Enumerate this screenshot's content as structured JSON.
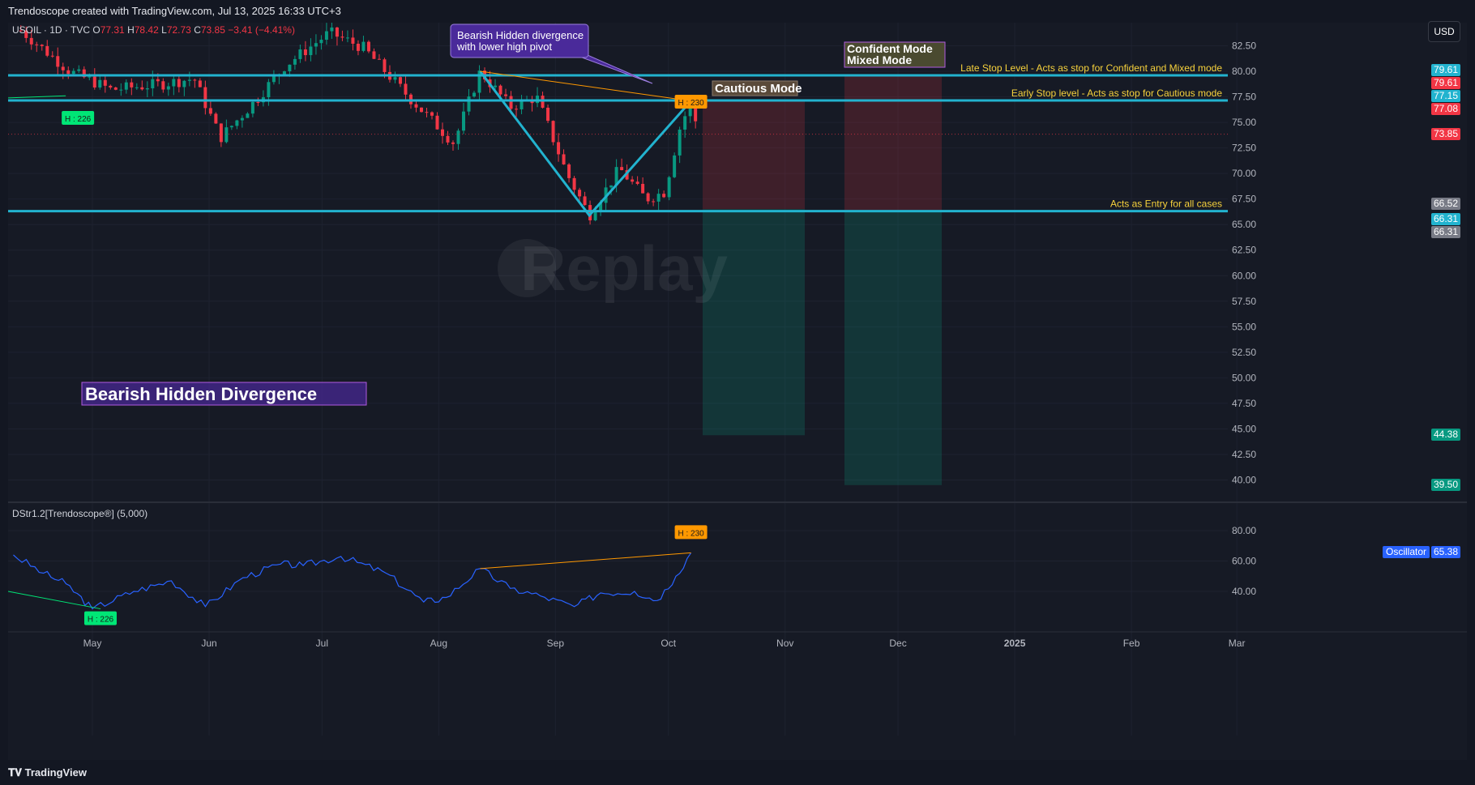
{
  "header": {
    "attribution": "Trendoscope created with TradingView.com, Jul 13, 2025 16:33 UTC+3"
  },
  "footer": {
    "brand": "TradingView"
  },
  "legend": {
    "symbol": "USOIL · 1D · TVC",
    "open_label": "O",
    "open": "77.31",
    "high_label": "H",
    "high": "78.42",
    "low_label": "L",
    "low": "72.73",
    "close_label": "C",
    "close": "73.85",
    "change": "−3.41 (−4.41%)"
  },
  "currency_button": "USD",
  "watermark": "Replay",
  "indicator": {
    "title": "DStr1.2[Trendoscope®] (5,000)",
    "badge": "Oscillator",
    "value": "65.38"
  },
  "annotations": {
    "callout": "Bearish Hidden divergence with lower high pivot",
    "title_box": "Bearish Hidden Divergence",
    "cautious": "Cautious Mode",
    "confident": "Confident Mode",
    "mixed": "Mixed Mode",
    "late_stop": "Late Stop Level - Acts as stop for Confident and Mixed mode",
    "early_stop": "Early Stop level - Acts as stop for Cautious mode",
    "entry": "Acts as Entry for all cases",
    "pivot_high_label": "H : 230",
    "pivot_low_label": "H : 226"
  },
  "price_tags": [
    {
      "value": "79.61",
      "color": "#22b3cf"
    },
    {
      "value": "79.61",
      "color": "#f23645"
    },
    {
      "value": "77.15",
      "color": "#22b3cf"
    },
    {
      "value": "77.08",
      "color": "#f23645"
    },
    {
      "value": "73.85",
      "color": "#f23645"
    },
    {
      "value": "66.52",
      "color": "#787b86"
    },
    {
      "value": "66.31",
      "color": "#22b3cf"
    },
    {
      "value": "66.31",
      "color": "#787b86"
    },
    {
      "value": "44.38",
      "color": "#089981"
    },
    {
      "value": "39.50",
      "color": "#089981"
    }
  ],
  "colors": {
    "up": "#089981",
    "down": "#f23645",
    "level": "#22b3cf",
    "osc": "#2962ff",
    "pivot": "#ff9800",
    "pivot_low": "#00e676"
  },
  "chart_data": [
    {
      "type": "candlestick",
      "title": "USOIL · 1D · TVC",
      "ylim": [
        39.5,
        83.5
      ],
      "yticks": [
        "82.50",
        "80.00",
        "77.50",
        "75.00",
        "72.50",
        "70.00",
        "67.50",
        "65.00",
        "62.50",
        "60.00",
        "57.50",
        "55.00",
        "52.50",
        "50.00",
        "47.50",
        "45.00",
        "42.50",
        "40.00"
      ],
      "xticks": [
        "May",
        "Jun",
        "Jul",
        "Aug",
        "Sep",
        "Oct",
        "Nov",
        "Dec",
        "2025",
        "Feb",
        "Mar"
      ],
      "levels": [
        {
          "name": "Late Stop Level",
          "value": 79.61
        },
        {
          "name": "Early Stop level",
          "value": 77.15
        },
        {
          "name": "Entry",
          "value": 66.31
        }
      ],
      "key_points": [
        {
          "x": "2024-04-25",
          "y": 77.9,
          "note": "H : 226"
        },
        {
          "x": "2024-08-12",
          "y": 80.0
        },
        {
          "x": "2024-09-10",
          "y": 65.9
        },
        {
          "x": "2024-10-07",
          "y": 77.1,
          "note": "H : 230"
        }
      ],
      "trade_zones": [
        {
          "mode": "Cautious Mode",
          "entry": 66.52,
          "stop": 77.08,
          "target": 44.38
        },
        {
          "mode": "Confident / Mixed Mode",
          "entry": 66.31,
          "stop": 79.61,
          "target": 39.5
        }
      ]
    },
    {
      "type": "line",
      "title": "DStr1.2[Trendoscope®] (5,000)",
      "ylim": [
        25,
        84
      ],
      "yticks": [
        "80.00",
        "60.00",
        "40.00"
      ],
      "series": [
        {
          "name": "Oscillator",
          "last": 65.38
        }
      ],
      "pivots": [
        {
          "x": "2024-05-01",
          "y": 28.5,
          "label": "H : 226"
        },
        {
          "x": "2024-08-12",
          "y": 55.0
        },
        {
          "x": "2024-10-07",
          "y": 65.38,
          "label": "H : 230"
        }
      ]
    }
  ]
}
